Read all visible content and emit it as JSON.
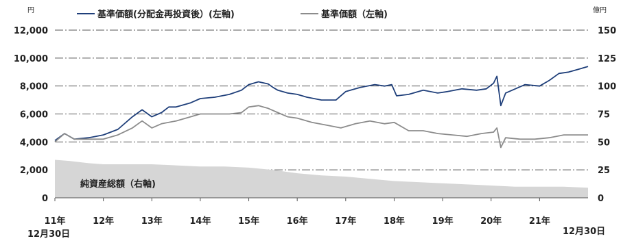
{
  "chart_data": {
    "type": "line",
    "left_unit": "円",
    "right_unit": "億円",
    "left_ylim": [
      0,
      12000
    ],
    "left_ticks": [
      "12,000",
      "10,000",
      "8,000",
      "6,000",
      "4,000",
      "2,000",
      "0"
    ],
    "right_ylim": [
      0,
      150
    ],
    "right_ticks": [
      "150",
      "125",
      "100",
      "75",
      "50",
      "25",
      "0"
    ],
    "x_labels": [
      "11年",
      "12年",
      "13年",
      "14年",
      "15年",
      "16年",
      "17年",
      "18年",
      "19年",
      "20年",
      "21年"
    ],
    "x_start_date": "12月30日",
    "x_end_date": "12月30日",
    "grid": true,
    "legend_position": "top",
    "series": [
      {
        "name": "基準価額(分配金再投資後）(左軸)",
        "axis": "left",
        "kind": "line",
        "color": "#1f3f7a",
        "x": [
          2011.0,
          2011.2,
          2011.4,
          2011.7,
          2012.0,
          2012.3,
          2012.6,
          2012.8,
          2013.0,
          2013.2,
          2013.35,
          2013.5,
          2013.8,
          2014.0,
          2014.3,
          2014.6,
          2014.85,
          2015.0,
          2015.2,
          2015.4,
          2015.5,
          2015.6,
          2015.8,
          2016.0,
          2016.2,
          2016.5,
          2016.8,
          2017.0,
          2017.3,
          2017.6,
          2017.8,
          2017.95,
          2018.05,
          2018.3,
          2018.6,
          2018.9,
          2019.1,
          2019.4,
          2019.7,
          2019.9,
          2020.05,
          2020.12,
          2020.2,
          2020.3,
          2020.5,
          2020.7,
          2021.0,
          2021.2,
          2021.4,
          2021.6,
          2021.8,
          2022.0
        ],
        "y": [
          4100,
          4600,
          4200,
          4300,
          4500,
          4900,
          5800,
          6300,
          5800,
          6100,
          6500,
          6500,
          6800,
          7100,
          7200,
          7400,
          7700,
          8100,
          8300,
          8150,
          7900,
          7700,
          7500,
          7400,
          7200,
          7000,
          7000,
          7600,
          7900,
          8100,
          8000,
          8100,
          7300,
          7400,
          7700,
          7500,
          7600,
          7800,
          7700,
          7800,
          8200,
          8700,
          6600,
          7500,
          7800,
          8100,
          8000,
          8400,
          8900,
          9000,
          9200,
          9400
        ]
      },
      {
        "name": "基準価額（左軸)",
        "axis": "left",
        "kind": "line",
        "color": "#8c8c8c",
        "x": [
          2011.0,
          2011.2,
          2011.4,
          2011.7,
          2012.0,
          2012.3,
          2012.6,
          2012.8,
          2013.0,
          2013.2,
          2013.5,
          2013.8,
          2014.0,
          2014.3,
          2014.6,
          2014.85,
          2015.0,
          2015.2,
          2015.4,
          2015.6,
          2015.8,
          2016.0,
          2016.3,
          2016.6,
          2016.9,
          2017.2,
          2017.5,
          2017.8,
          2018.0,
          2018.3,
          2018.6,
          2018.9,
          2019.2,
          2019.5,
          2019.8,
          2020.05,
          2020.12,
          2020.2,
          2020.3,
          2020.6,
          2020.9,
          2021.2,
          2021.5,
          2021.8,
          2022.0
        ],
        "y": [
          4000,
          4600,
          4200,
          4200,
          4200,
          4500,
          5000,
          5500,
          5000,
          5300,
          5500,
          5800,
          6000,
          6000,
          6000,
          6100,
          6500,
          6600,
          6400,
          6100,
          5800,
          5700,
          5400,
          5200,
          5000,
          5300,
          5500,
          5300,
          5400,
          4800,
          4800,
          4600,
          4500,
          4400,
          4600,
          4700,
          5000,
          3600,
          4300,
          4200,
          4200,
          4300,
          4500,
          4500,
          4500
        ]
      },
      {
        "name": "純資産総額（右軸)",
        "axis": "right",
        "kind": "area",
        "color": "#d6d6d6",
        "x": [
          2011.0,
          2011.3,
          2011.7,
          2012.0,
          2012.5,
          2013.0,
          2013.5,
          2014.0,
          2014.5,
          2015.0,
          2015.5,
          2016.0,
          2016.5,
          2017.0,
          2017.5,
          2018.0,
          2018.5,
          2019.0,
          2019.5,
          2020.0,
          2020.5,
          2021.0,
          2021.5,
          2022.0
        ],
        "y": [
          34,
          33,
          31,
          30,
          30,
          30,
          29,
          28,
          28,
          27,
          25,
          22,
          20,
          19,
          17,
          15,
          14,
          13,
          12,
          11,
          10,
          10,
          10,
          9
        ]
      }
    ]
  }
}
